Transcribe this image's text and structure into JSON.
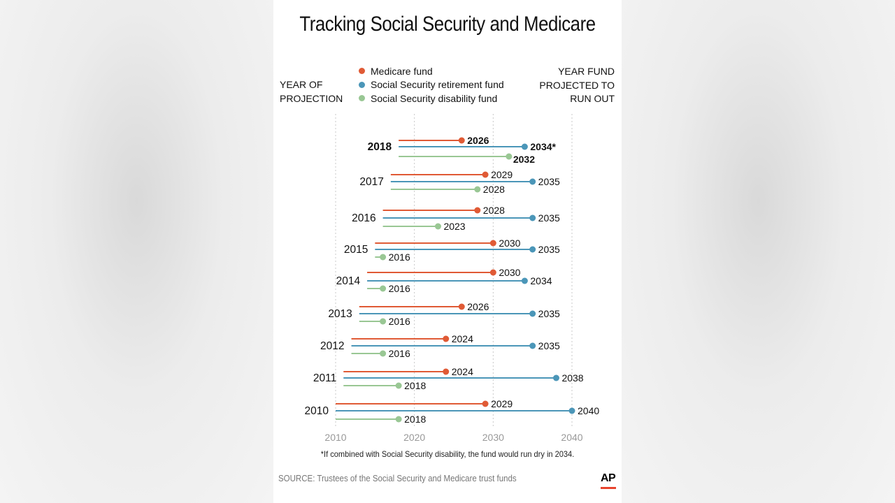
{
  "title": "Tracking Social Security and Medicare",
  "header": {
    "left_line1": "YEAR OF",
    "left_line2": "PROJECTION",
    "right_line1": "YEAR FUND",
    "right_line2": "PROJECTED TO",
    "right_line3": "RUN OUT"
  },
  "legend": [
    {
      "name": "Medicare fund",
      "color": "#e05a35"
    },
    {
      "name": "Social Security retirement fund",
      "color": "#4b96b8"
    },
    {
      "name": "Social Security disability fund",
      "color": "#99c794"
    }
  ],
  "footnote": "*If combined with Social Security disability, the fund would run dry in 2034.",
  "source": "SOURCE: Trustees of the Social Security and Medicare trust funds",
  "logo": "AP",
  "chart_data": {
    "type": "line",
    "title": "Tracking Social Security and Medicare",
    "x_ticks": [
      "2010",
      "2020",
      "2030",
      "2040"
    ],
    "xlim": [
      2010,
      2040
    ],
    "grid": true,
    "legend_position": "top-center",
    "categories": [
      "2018",
      "2017",
      "2016",
      "2015",
      "2014",
      "2013",
      "2012",
      "2011",
      "2010"
    ],
    "series": [
      {
        "name": "Medicare fund",
        "values": [
          2026,
          2029,
          2028,
          2030,
          2030,
          2026,
          2024,
          2024,
          2029
        ],
        "labels": [
          "2026",
          "2029",
          "2028",
          "2030",
          "2030",
          "2026",
          "2024",
          "2024",
          "2029"
        ]
      },
      {
        "name": "Social Security retirement fund",
        "values": [
          2034,
          2035,
          2035,
          2035,
          2034,
          2035,
          2035,
          2038,
          2040
        ],
        "labels": [
          "2034*",
          "2035",
          "2035",
          "2035",
          "2034",
          "2035",
          "2035",
          "2038",
          "2040"
        ]
      },
      {
        "name": "Social Security disability fund",
        "values": [
          2032,
          2028,
          2023,
          2016,
          2016,
          2016,
          2016,
          2018,
          2018
        ],
        "labels": [
          "2032",
          "2028",
          "2023",
          "2016",
          "2016",
          "2016",
          "2016",
          "2018",
          "2018"
        ]
      }
    ],
    "highlighted_category": "2018"
  }
}
